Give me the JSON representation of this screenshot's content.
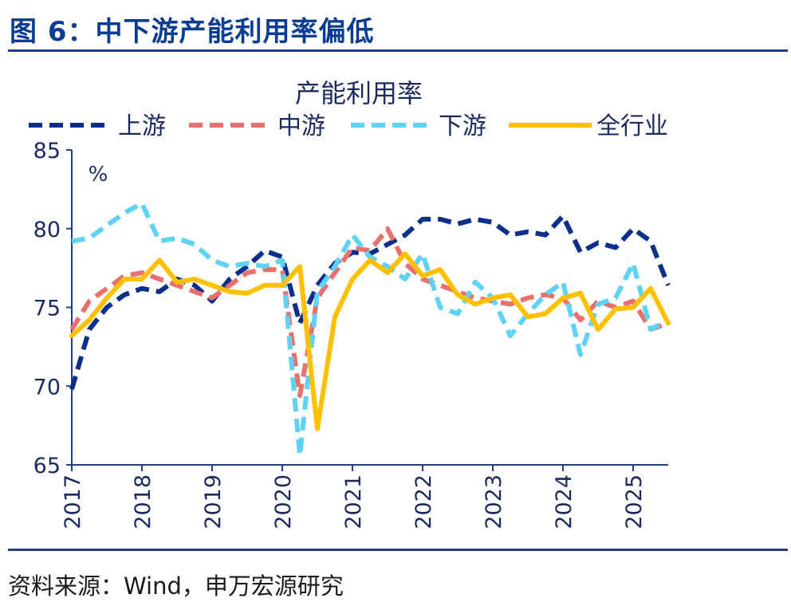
{
  "figure": {
    "title": "图 6：中下游产能利用率偏低",
    "source": "资料来源：Wind，申万宏源研究"
  },
  "colors": {
    "header": "#0a3d91",
    "rule": "#1f3e8c",
    "axis": "#1f3e8c",
    "text": "#1a2a5e"
  },
  "chart_data": {
    "type": "line",
    "title": "产能利用率",
    "unit_label": "%",
    "xlabel": "",
    "ylabel": "",
    "ylim": [
      65,
      85
    ],
    "yticks": [
      65,
      70,
      75,
      80,
      85
    ],
    "xlim": [
      2017.0,
      2025.5
    ],
    "xticks": [
      2017,
      2018,
      2019,
      2020,
      2021,
      2022,
      2023,
      2024,
      2025
    ],
    "xtick_labels": [
      "2017",
      "2018",
      "2019",
      "2020",
      "2021",
      "2022",
      "2023",
      "2024",
      "2025"
    ],
    "grid": false,
    "legend_position": "top",
    "series": [
      {
        "name": "上游",
        "color": "#0b2f8a",
        "dash": "long-dash",
        "x": [
          2017.0,
          2017.25,
          2017.5,
          2017.75,
          2018.0,
          2018.25,
          2018.5,
          2018.75,
          2019.0,
          2019.25,
          2019.5,
          2019.75,
          2020.0,
          2020.25,
          2020.5,
          2020.75,
          2021.0,
          2021.25,
          2021.5,
          2021.75,
          2022.0,
          2022.25,
          2022.5,
          2022.75,
          2023.0,
          2023.25,
          2023.5,
          2023.75,
          2024.0,
          2024.25,
          2024.5,
          2024.75,
          2025.0,
          2025.25,
          2025.5
        ],
        "y": [
          69.8,
          73.6,
          75.0,
          75.8,
          76.2,
          76.0,
          76.8,
          76.4,
          75.4,
          76.8,
          77.6,
          78.6,
          78.2,
          74.0,
          76.4,
          77.8,
          78.5,
          78.4,
          79.0,
          79.6,
          80.6,
          80.6,
          80.3,
          80.6,
          80.4,
          79.6,
          79.8,
          79.6,
          80.8,
          78.5,
          79.1,
          78.8,
          80.0,
          79.2,
          76.4
        ]
      },
      {
        "name": "中游",
        "color": "#e8706e",
        "dash": "dash",
        "x": [
          2017.0,
          2017.25,
          2017.5,
          2017.75,
          2018.0,
          2018.25,
          2018.5,
          2018.75,
          2019.0,
          2019.25,
          2019.5,
          2019.75,
          2020.0,
          2020.25,
          2020.5,
          2020.75,
          2021.0,
          2021.25,
          2021.5,
          2021.75,
          2022.0,
          2022.25,
          2022.5,
          2022.75,
          2023.0,
          2023.25,
          2023.5,
          2023.75,
          2024.0,
          2024.25,
          2024.5,
          2024.75,
          2025.0,
          2025.25,
          2025.5
        ],
        "y": [
          73.6,
          75.4,
          76.2,
          77.0,
          77.2,
          76.8,
          76.4,
          76.0,
          75.6,
          76.4,
          77.2,
          77.4,
          77.4,
          69.4,
          75.6,
          77.2,
          78.8,
          78.6,
          80.0,
          77.8,
          76.8,
          76.4,
          76.0,
          75.6,
          75.4,
          75.2,
          75.6,
          75.8,
          75.6,
          74.2,
          75.4,
          75.0,
          75.4,
          73.6,
          74.0
        ]
      },
      {
        "name": "下游",
        "color": "#5fd3f7",
        "dash": "dash",
        "x": [
          2017.0,
          2017.25,
          2017.5,
          2017.75,
          2018.0,
          2018.25,
          2018.5,
          2018.75,
          2019.0,
          2019.25,
          2019.5,
          2019.75,
          2020.0,
          2020.25,
          2020.5,
          2020.75,
          2021.0,
          2021.25,
          2021.5,
          2021.75,
          2022.0,
          2022.25,
          2022.5,
          2022.75,
          2023.0,
          2023.25,
          2023.5,
          2023.75,
          2024.0,
          2024.25,
          2024.5,
          2024.75,
          2025.0,
          2025.25,
          2025.5
        ],
        "y": [
          79.2,
          79.4,
          80.2,
          81.0,
          81.6,
          79.2,
          79.4,
          79.0,
          78.0,
          77.6,
          77.8,
          77.6,
          78.0,
          65.6,
          76.0,
          77.6,
          79.6,
          78.2,
          77.6,
          76.8,
          78.4,
          75.0,
          74.6,
          76.6,
          75.6,
          73.2,
          74.6,
          75.8,
          76.6,
          72.0,
          75.2,
          75.6,
          77.8,
          73.6,
          74.2
        ]
      },
      {
        "name": "全行业",
        "color": "#ffc000",
        "dash": "solid",
        "x": [
          2017.0,
          2017.25,
          2017.5,
          2017.75,
          2018.0,
          2018.25,
          2018.5,
          2018.75,
          2019.0,
          2019.25,
          2019.5,
          2019.75,
          2020.0,
          2020.25,
          2020.5,
          2020.75,
          2021.0,
          2021.25,
          2021.5,
          2021.75,
          2022.0,
          2022.25,
          2022.5,
          2022.75,
          2023.0,
          2023.25,
          2023.5,
          2023.75,
          2024.0,
          2024.25,
          2024.5,
          2024.75,
          2025.0,
          2025.25,
          2025.5
        ],
        "y": [
          73.2,
          74.2,
          75.6,
          76.8,
          76.8,
          78.0,
          76.6,
          76.8,
          76.4,
          76.0,
          75.9,
          76.4,
          76.4,
          77.6,
          67.3,
          74.4,
          76.8,
          78.0,
          77.2,
          78.4,
          77.0,
          77.4,
          75.8,
          75.2,
          75.6,
          75.8,
          74.4,
          74.6,
          75.6,
          75.9,
          73.6,
          74.9,
          75.0,
          76.2,
          74.0
        ]
      }
    ]
  }
}
